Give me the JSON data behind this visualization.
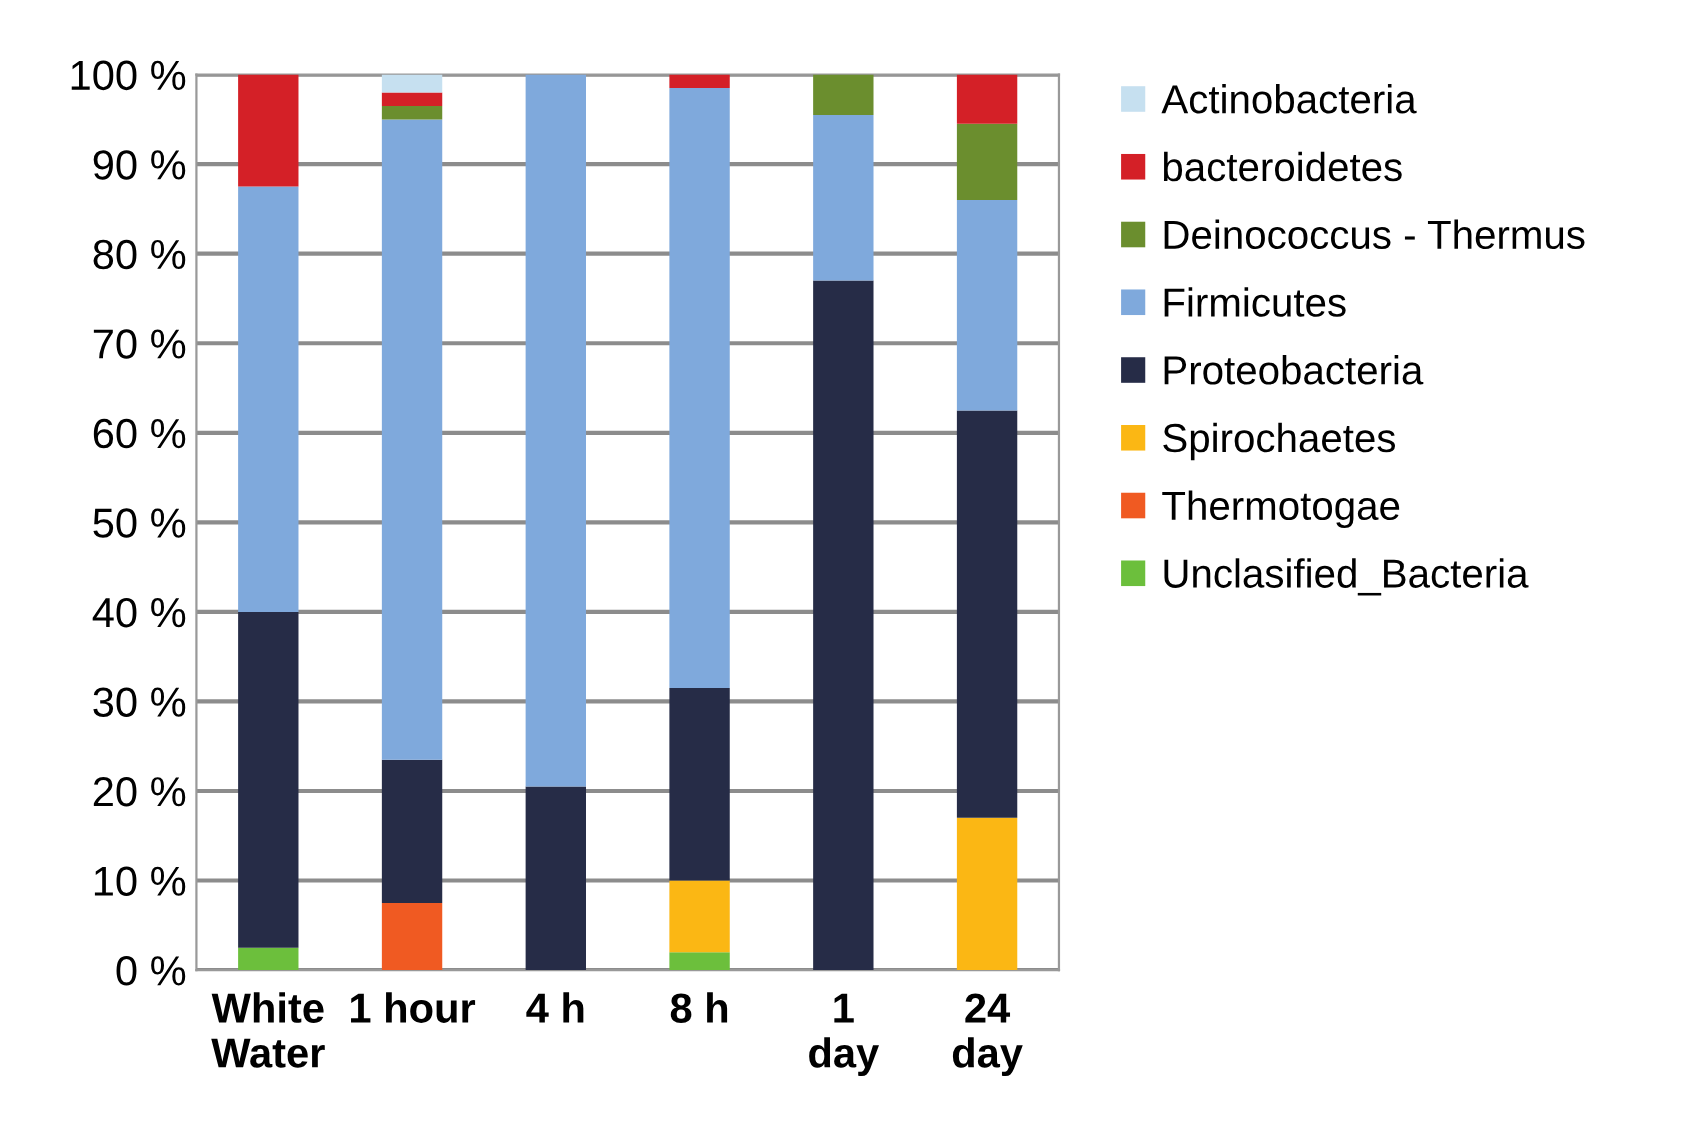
{
  "chart_data": {
    "type": "bar",
    "stacked": true,
    "categories": [
      "White\nWater",
      "1 hour",
      "4 h",
      "8 h",
      "1\nday",
      "24\nday"
    ],
    "series": [
      {
        "name": "Unclasified_Bacteria",
        "color": "#6cbf3c",
        "values": [
          2.5,
          0,
          0,
          2,
          0,
          0
        ]
      },
      {
        "name": "Thermotogae",
        "color": "#f05a22",
        "values": [
          0,
          7.5,
          0,
          0,
          0,
          0
        ]
      },
      {
        "name": "Spirochaetes",
        "color": "#fbb714",
        "values": [
          0,
          0,
          0,
          8,
          0,
          17
        ]
      },
      {
        "name": "Proteobacteria",
        "color": "#262c47",
        "values": [
          37.5,
          16,
          20.5,
          21.5,
          77,
          45.5
        ]
      },
      {
        "name": "Firmicutes",
        "color": "#7fa9dc",
        "values": [
          47.5,
          71.5,
          79.5,
          67,
          18.5,
          23.5
        ]
      },
      {
        "name": "Deinococcus - Thermus",
        "color": "#6b8e2e",
        "values": [
          0,
          1.5,
          0,
          0,
          4.5,
          8.5
        ]
      },
      {
        "name": "bacteroidetes",
        "color": "#d42027",
        "values": [
          12.5,
          1.5,
          0,
          1.5,
          0,
          5.5
        ]
      },
      {
        "name": "Actinobacteria",
        "color": "#c6e0f0",
        "values": [
          0,
          2,
          0,
          0,
          0,
          0
        ]
      }
    ],
    "ylim": [
      0,
      100
    ],
    "yticks": [
      {
        "value": 0,
        "label": "0 %"
      },
      {
        "value": 10,
        "label": "10 %"
      },
      {
        "value": 20,
        "label": "20 %"
      },
      {
        "value": 30,
        "label": "30 %"
      },
      {
        "value": 40,
        "label": "40 %"
      },
      {
        "value": 50,
        "label": "50 %"
      },
      {
        "value": 60,
        "label": "60 %"
      },
      {
        "value": 70,
        "label": "70 %"
      },
      {
        "value": 80,
        "label": "80 %"
      },
      {
        "value": 90,
        "label": "90 %"
      },
      {
        "value": 100,
        "label": "100 %"
      }
    ],
    "grid": "y",
    "legend": "right"
  }
}
